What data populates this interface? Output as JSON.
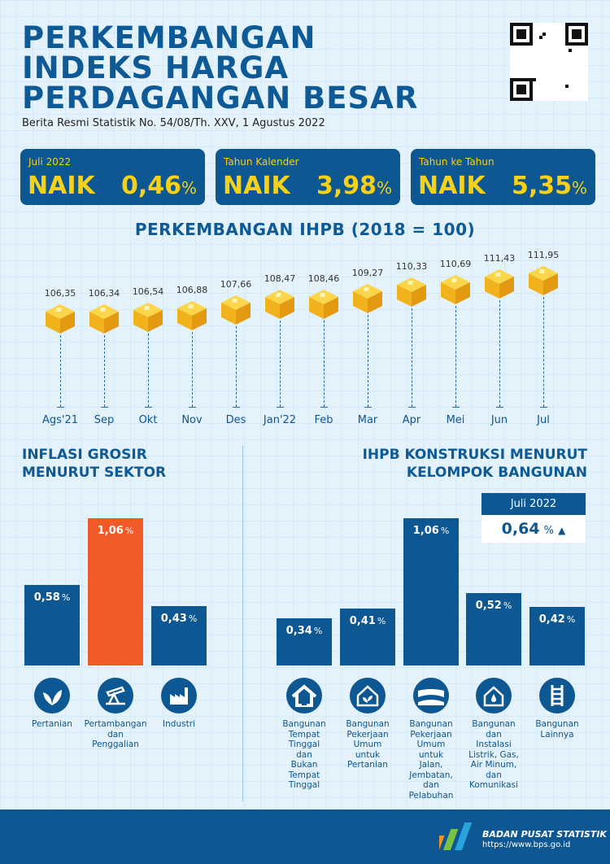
{
  "header": {
    "title_lines": [
      "PERKEMBANGAN",
      "INDEKS HARGA",
      "PERDAGANGAN BESAR"
    ],
    "subtitle": "Berita Resmi Statistik No. 54/08/Th. XXV, 1 Agustus 2022"
  },
  "summary": [
    {
      "label": "Juli 2022",
      "direction": "NAIK",
      "value": "0,46",
      "unit": "%"
    },
    {
      "label": "Tahun Kalender",
      "direction": "NAIK",
      "value": "3,98",
      "unit": "%"
    },
    {
      "label": "Tahun ke Tahun",
      "direction": "NAIK",
      "value": "5,35",
      "unit": "%"
    }
  ],
  "colors": {
    "primary": "#0d5793",
    "accent": "#f7d117",
    "highlight": "#f05a28",
    "background": "#e4f2fb"
  },
  "chart_data": [
    {
      "type": "line",
      "title": "PERKEMBANGAN IHPB (2018 = 100)",
      "categories": [
        "Ags'21",
        "Sep",
        "Okt",
        "Nov",
        "Des",
        "Jan'22",
        "Feb",
        "Mar",
        "Apr",
        "Mei",
        "Jun",
        "Jul"
      ],
      "values": [
        106.35,
        106.34,
        106.54,
        106.88,
        107.66,
        108.47,
        108.46,
        109.27,
        110.33,
        110.69,
        111.43,
        111.95
      ],
      "labels": [
        "106,35",
        "106,34",
        "106,54",
        "106,88",
        "107,66",
        "108,47",
        "108,46",
        "109,27",
        "110,33",
        "110,69",
        "111,43",
        "111,95"
      ],
      "marker": "cube"
    },
    {
      "type": "bar",
      "title": "INFLASI GROSIR MENURUT SEKTOR",
      "title_lines": [
        "INFLASI GROSIR",
        "MENURUT SEKTOR"
      ],
      "categories": [
        "Pertanian",
        "Pertambangan dan Penggalian",
        "Industri"
      ],
      "category_lines": [
        [
          "Pertanian"
        ],
        [
          "Pertambangan",
          "dan",
          "Penggalian"
        ],
        [
          "Industri"
        ]
      ],
      "values": [
        0.58,
        1.06,
        0.43
      ],
      "labels": [
        "0,58",
        "1,06",
        "0,43"
      ],
      "unit": "%",
      "icons": [
        "plant-icon",
        "oil-pump-icon",
        "factory-icon"
      ],
      "highlight_index": 1
    },
    {
      "type": "bar",
      "title": "IHPB KONSTRUKSI MENURUT KELOMPOK BANGUNAN",
      "title_lines": [
        "IHPB KONSTRUKSI MENURUT",
        "KELOMPOK BANGUNAN"
      ],
      "badge": {
        "label": "Juli 2022",
        "value": "0,64",
        "unit": "%",
        "trend": "up"
      },
      "categories": [
        "Bangunan Tempat Tinggal dan Bukan Tempat Tinggal",
        "Bangunan Pekerjaan Umum untuk Pertanian",
        "Bangunan Pekerjaan Umum untuk Jalan, Jembatan, dan Pelabuhan",
        "Bangunan dan Instalasi Listrik, Gas, Air Minum, dan Komunikasi",
        "Bangunan Lainnya"
      ],
      "category_lines": [
        [
          "Bangunan",
          "Tempat",
          "Tinggal",
          "dan",
          "Bukan",
          "Tempat",
          "Tinggal"
        ],
        [
          "Bangunan",
          "Pekerjaan",
          "Umum",
          "untuk",
          "Pertanian"
        ],
        [
          "Bangunan",
          "Pekerjaan",
          "Umum",
          "untuk",
          "Jalan,",
          "Jembatan,",
          "dan",
          "Pelabuhan"
        ],
        [
          "Bangunan",
          "dan",
          "Instalasi",
          "Listrik, Gas,",
          "Air Minum,",
          "dan",
          "Komunikasi"
        ],
        [
          "Bangunan",
          "Lainnya"
        ]
      ],
      "values": [
        0.34,
        0.41,
        1.06,
        0.52,
        0.42
      ],
      "labels": [
        "0,34",
        "0,41",
        "1,06",
        "0,52",
        "0,42"
      ],
      "unit": "%",
      "icons": [
        "house-icon",
        "greenhouse-icon",
        "bridge-icon",
        "utility-house-icon",
        "railway-icon"
      ]
    }
  ],
  "footer": {
    "org": "BADAN PUSAT STATISTIK",
    "url": "https://www.bps.go.id"
  }
}
